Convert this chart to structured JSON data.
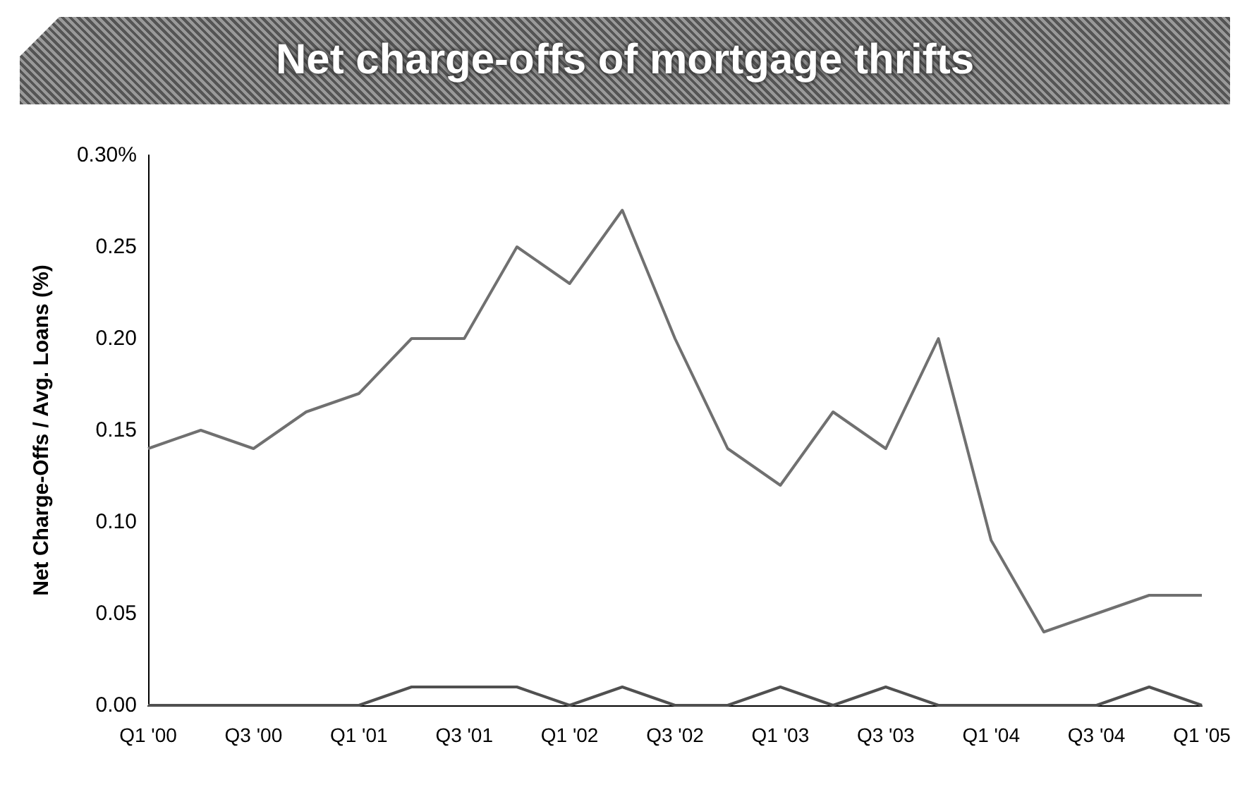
{
  "chart_data": {
    "type": "line",
    "title": "Net charge-offs of mortgage thrifts",
    "ylabel": "Net Charge-Offs / Avg. Loans (%)",
    "categories": [
      "Q1 '00",
      null,
      "Q3 '00",
      null,
      "Q1 '01",
      null,
      "Q3 '01",
      null,
      "Q1 '02",
      null,
      "Q3 '02",
      null,
      "Q1 '03",
      null,
      "Q3 '03",
      null,
      "Q1 '04",
      null,
      "Q3 '04",
      null,
      "Q1 '05"
    ],
    "series": [
      {
        "color": "#707070",
        "values": [
          0.14,
          0.15,
          0.14,
          0.16,
          0.17,
          0.2,
          0.2,
          0.25,
          0.23,
          0.27,
          0.2,
          0.14,
          0.12,
          0.16,
          0.14,
          0.2,
          0.09,
          0.04,
          0.05,
          0.06,
          0.06
        ]
      },
      {
        "color": "#505050",
        "values": [
          0,
          0,
          0,
          0,
          0,
          0.01,
          0.01,
          0.01,
          0,
          0.01,
          0,
          0,
          0.01,
          0,
          0.01,
          0,
          0,
          0,
          0,
          0.01,
          0
        ]
      }
    ],
    "ylim": [
      0,
      0.3
    ],
    "yticks": [
      {
        "value": 0,
        "label": "0.00"
      },
      {
        "value": 0.05,
        "label": "0.05"
      },
      {
        "value": 0.1,
        "label": "0.10"
      },
      {
        "value": 0.15,
        "label": "0.15"
      },
      {
        "value": 0.2,
        "label": "0.20"
      },
      {
        "value": 0.25,
        "label": "0.25"
      },
      {
        "value": 0.3,
        "label": "0.30%"
      }
    ],
    "grid": false,
    "marker": "none",
    "line_style": "solid"
  }
}
